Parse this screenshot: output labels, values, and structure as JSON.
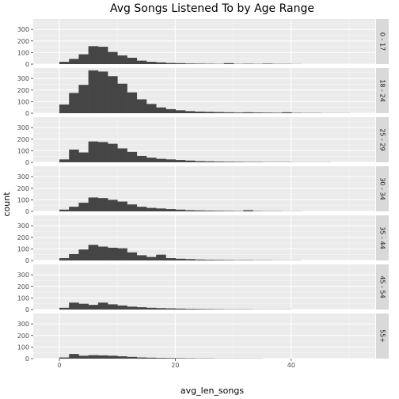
{
  "chart_data": {
    "type": "bar",
    "title": "Avg Songs Listened To by Age Range",
    "xlabel": "avg_len_songs",
    "ylabel": "count",
    "xlim": [
      -4.5,
      54.5
    ],
    "ylim": [
      0,
      390
    ],
    "x_ticks": [
      0,
      20,
      40
    ],
    "y_ticks": [
      0,
      100,
      200,
      300
    ],
    "bin_start": 0,
    "bin_width": 1.67,
    "grid": true,
    "facet_labels_position": "right",
    "bar_color": "#454545",
    "panel_color": "#ebebeb",
    "strip_color": "#d9d9d9",
    "panels": [
      {
        "label": "0 - 17",
        "values": [
          20,
          45,
          85,
          155,
          150,
          105,
          75,
          55,
          30,
          20,
          15,
          10,
          8,
          5,
          4,
          3,
          2,
          8,
          2,
          3,
          2,
          4,
          2,
          2,
          1,
          0,
          0,
          0,
          0,
          0
        ]
      },
      {
        "label": "18 - 24",
        "values": [
          75,
          175,
          245,
          370,
          360,
          320,
          255,
          180,
          120,
          80,
          50,
          35,
          25,
          18,
          14,
          12,
          10,
          8,
          6,
          8,
          6,
          5,
          4,
          8,
          3,
          2,
          2,
          1,
          1,
          1
        ]
      },
      {
        "label": "25 - 29",
        "values": [
          25,
          110,
          85,
          180,
          175,
          160,
          120,
          90,
          55,
          40,
          30,
          25,
          20,
          15,
          10,
          8,
          6,
          5,
          4,
          3,
          3,
          2,
          2,
          2,
          1,
          1,
          1,
          1,
          0,
          0
        ]
      },
      {
        "label": "30 - 34",
        "values": [
          15,
          40,
          75,
          120,
          115,
          100,
          85,
          60,
          40,
          30,
          25,
          20,
          15,
          10,
          8,
          6,
          5,
          4,
          3,
          10,
          3,
          2,
          2,
          1,
          1,
          0,
          0,
          0,
          0,
          0
        ]
      },
      {
        "label": "35 - 44",
        "values": [
          20,
          55,
          95,
          135,
          120,
          110,
          105,
          70,
          45,
          30,
          50,
          20,
          15,
          12,
          8,
          6,
          5,
          4,
          3,
          3,
          2,
          2,
          1,
          1,
          1,
          0,
          0,
          0,
          0,
          0
        ]
      },
      {
        "label": "45 - 54",
        "values": [
          15,
          60,
          50,
          40,
          60,
          45,
          35,
          25,
          20,
          15,
          12,
          10,
          8,
          6,
          5,
          4,
          3,
          2,
          2,
          2,
          1,
          1,
          1,
          1,
          0,
          0,
          0,
          0,
          0,
          0
        ]
      },
      {
        "label": "55+",
        "values": [
          10,
          40,
          25,
          30,
          28,
          25,
          20,
          15,
          10,
          8,
          6,
          5,
          4,
          3,
          2,
          2,
          1,
          1,
          1,
          1,
          1,
          0,
          0,
          0,
          0,
          0,
          0,
          0,
          0,
          0
        ]
      }
    ]
  }
}
